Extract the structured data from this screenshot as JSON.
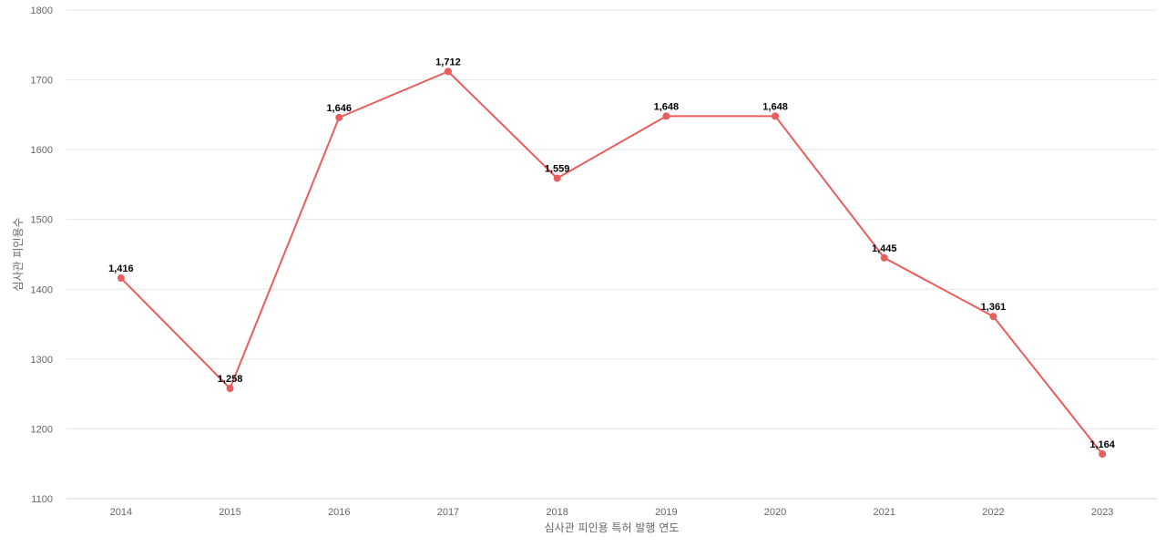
{
  "chart_data": {
    "type": "line",
    "x": [
      "2014",
      "2015",
      "2016",
      "2017",
      "2018",
      "2019",
      "2020",
      "2021",
      "2022",
      "2023"
    ],
    "series": [
      {
        "values": [
          1416,
          1258,
          1646,
          1712,
          1559,
          1648,
          1648,
          1445,
          1361,
          1164
        ],
        "labels": [
          "1,416",
          "1,258",
          "1,646",
          "1,712",
          "1,559",
          "1,648",
          "1,648",
          "1,445",
          "1,361",
          "1,164"
        ],
        "color": "#e85d5d"
      }
    ],
    "title": "",
    "xlabel": "심사관 피인용 특허 발행 연도",
    "ylabel": "심사관 피인용수",
    "ylim": [
      1100,
      1800
    ],
    "yticks": [
      "1100",
      "1200",
      "1300",
      "1400",
      "1500",
      "1600",
      "1700",
      "1800"
    ],
    "grid": true,
    "legend": "none"
  }
}
